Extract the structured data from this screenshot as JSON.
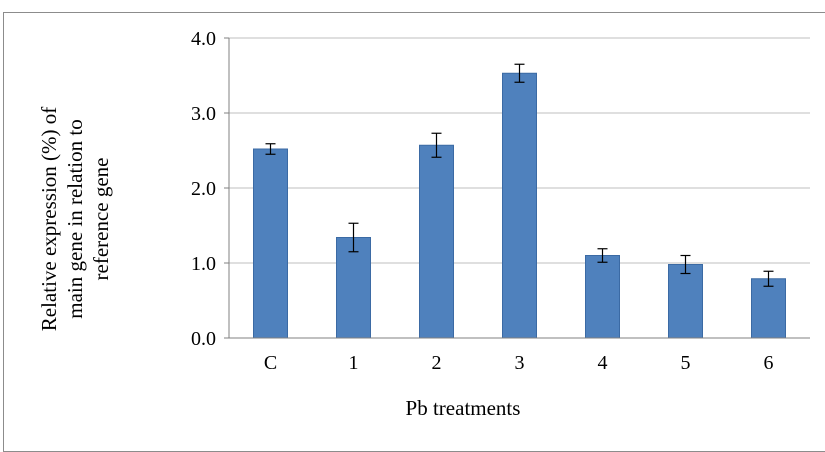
{
  "chart_data": {
    "type": "bar",
    "title": "",
    "xlabel": "Pb treatments",
    "ylabel_lines": [
      "Relative expression  (%) of",
      "main gene in relation to",
      "reference gene"
    ],
    "categories": [
      "C",
      "1",
      "2",
      "3",
      "4",
      "5",
      "6"
    ],
    "values": [
      2.52,
      1.34,
      2.57,
      3.53,
      1.1,
      0.98,
      0.79
    ],
    "errors": [
      0.07,
      0.19,
      0.16,
      0.12,
      0.09,
      0.12,
      0.1
    ],
    "ylim": [
      0,
      4
    ],
    "yticks": [
      "0.0",
      "1.0",
      "2.0",
      "3.0",
      "4.0"
    ],
    "ytick_values": [
      0,
      1,
      2,
      3,
      4
    ],
    "grid": true,
    "bar_color": "#4f81bd",
    "bar_edge_color": "#3b6aa4",
    "grid_color": "#bfbfbf",
    "axis_color": "#808080"
  }
}
